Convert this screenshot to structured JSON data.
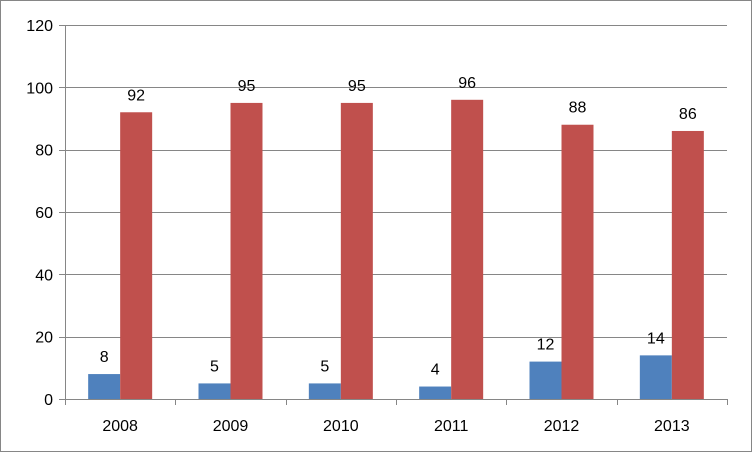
{
  "chart_data": {
    "type": "bar",
    "categories": [
      "2008",
      "2009",
      "2010",
      "2011",
      "2012",
      "2013"
    ],
    "series": [
      {
        "values": [
          8,
          5,
          5,
          4,
          12,
          14
        ],
        "color": "#4F81BD"
      },
      {
        "values": [
          92,
          95,
          95,
          96,
          88,
          86
        ],
        "color": "#C0504D"
      }
    ],
    "y_ticks": [
      "0",
      "20",
      "40",
      "60",
      "80",
      "100",
      "120"
    ],
    "ylim": [
      0,
      120
    ],
    "grid": true,
    "legend": "none",
    "data_labels": true
  }
}
